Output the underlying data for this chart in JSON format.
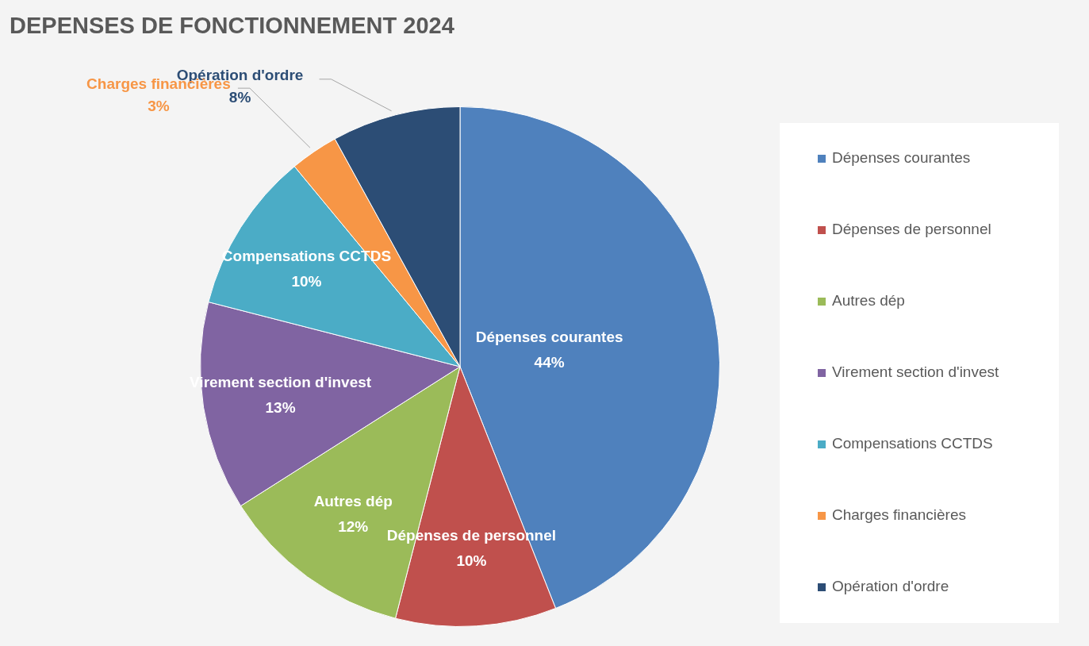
{
  "chart_data": {
    "type": "pie",
    "title": "DEPENSES DE FONCTIONNEMENT 2024",
    "categories": [
      "Dépenses courantes",
      "Dépenses de personnel",
      "Autres dép",
      "Virement section d'invest",
      "Compensations CCTDS",
      "Charges financières",
      "Opération d'ordre"
    ],
    "values": [
      44,
      10,
      12,
      13,
      10,
      3,
      8
    ],
    "colors": [
      "#4f81bd",
      "#c0504d",
      "#9bbb59",
      "#8064a2",
      "#4bacc6",
      "#f79646",
      "#2c4d75"
    ],
    "value_labels": [
      "44%",
      "10%",
      "12%",
      "13%",
      "10%",
      "3%",
      "8%"
    ],
    "legend": "right"
  }
}
